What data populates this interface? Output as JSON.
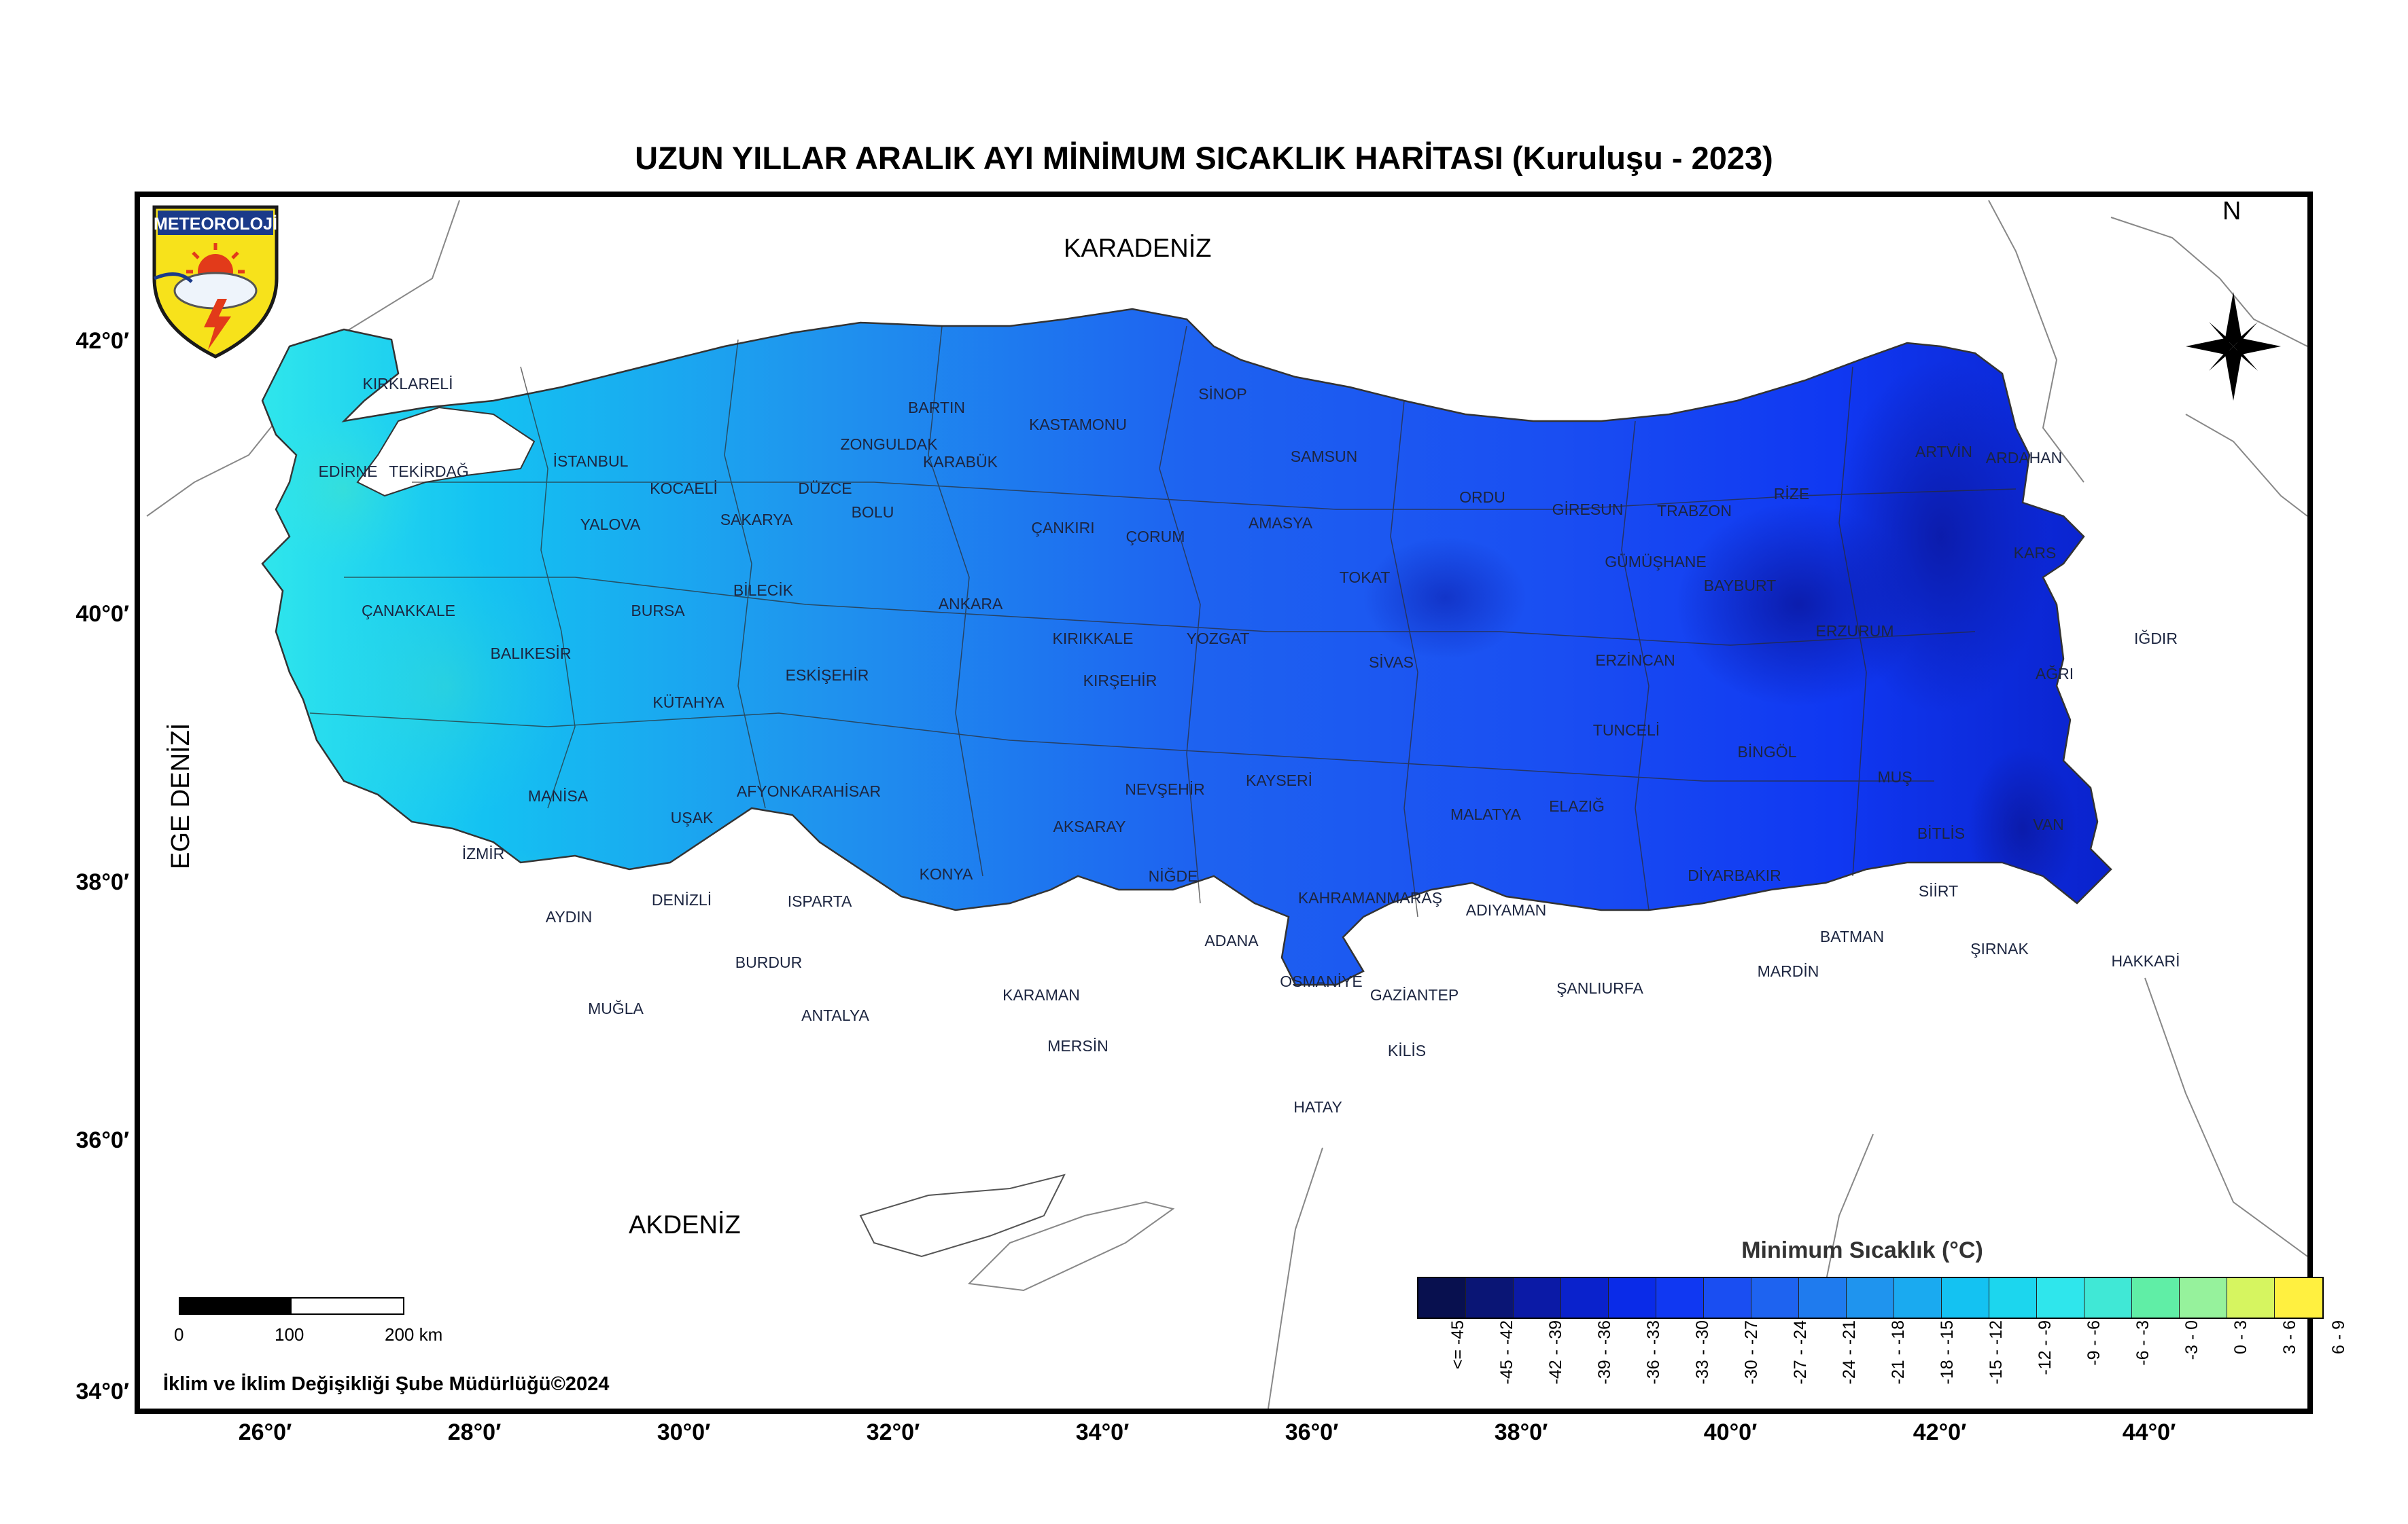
{
  "title": "UZUN YILLAR ARALIK AYI MİNİMUM SICAKLIK HARİTASI (Kuruluşu - 2023)",
  "logo_text": "METEOROLOJİ",
  "north_label": "N",
  "seas": {
    "karadeniz": "KARADENİZ",
    "akdeniz": "AKDENİZ",
    "ege": "EGE DENİZİ"
  },
  "latitudes": [
    "42°0′",
    "40°0′",
    "38°0′",
    "36°0′",
    "34°0′"
  ],
  "longitudes": [
    "26°0′",
    "28°0′",
    "30°0′",
    "32°0′",
    "34°0′",
    "36°0′",
    "38°0′",
    "40°0′",
    "42°0′",
    "44°0′"
  ],
  "provinces": [
    "KIRKLARELİ",
    "EDİRNE",
    "TEKİRDAĞ",
    "İSTANBUL",
    "KOCAELİ",
    "YALOVA",
    "SAKARYA",
    "DÜZCE",
    "BOLU",
    "ZONGULDAK",
    "BARTIN",
    "KARABÜK",
    "KASTAMONU",
    "SİNOP",
    "SAMSUN",
    "ORDU",
    "GİRESUN",
    "TRABZON",
    "RİZE",
    "ARTVİN",
    "ARDAHAN",
    "KARS",
    "IĞDIR",
    "AĞRI",
    "ERZURUM",
    "BAYBURT",
    "GÜMÜŞHANE",
    "ERZİNCAN",
    "TUNCELİ",
    "BİNGÖL",
    "MUŞ",
    "BİTLİS",
    "VAN",
    "HAKKARİ",
    "ŞIRNAK",
    "SİİRT",
    "BATMAN",
    "MARDİN",
    "DİYARBAKIR",
    "ELAZIĞ",
    "MALATYA",
    "ADIYAMAN",
    "ŞANLIURFA",
    "GAZİANTEP",
    "KİLİS",
    "HATAY",
    "OSMANİYE",
    "ADANA",
    "KAHRAMANMARAŞ",
    "KAYSERİ",
    "SİVAS",
    "TOKAT",
    "AMASYA",
    "ÇORUM",
    "YOZGAT",
    "KIRŞEHİR",
    "KIRIKKALE",
    "ÇANKIRI",
    "ANKARA",
    "NEVŞEHİR",
    "AKSARAY",
    "NİĞDE",
    "KONYA",
    "KARAMAN",
    "MERSİN",
    "ANTALYA",
    "BURDUR",
    "ISPARTA",
    "DENİZLİ",
    "MUĞLA",
    "AYDIN",
    "İZMİR",
    "MANİSA",
    "UŞAK",
    "AFYONKARAHİSAR",
    "KÜTAHYA",
    "ESKİŞEHİR",
    "BİLECİK",
    "BURSA",
    "BALIKESİR",
    "ÇANAKKALE"
  ],
  "legend": {
    "title": "Minimum Sıcaklık (°C)",
    "classes": [
      {
        "label": "<= -45",
        "color": "#08104f"
      },
      {
        "label": "-45 - -42",
        "color": "#0a1575"
      },
      {
        "label": "-42 - -39",
        "color": "#0b1aa6"
      },
      {
        "label": "-39 - -36",
        "color": "#0a22cc"
      },
      {
        "label": "-36 - -33",
        "color": "#0a2be8"
      },
      {
        "label": "-33 - -30",
        "color": "#1038f2"
      },
      {
        "label": "-30 - -27",
        "color": "#1a4ef2"
      },
      {
        "label": "-27 - -24",
        "color": "#1e63f0"
      },
      {
        "label": "-24 - -21",
        "color": "#1f7bee"
      },
      {
        "label": "-21 - -18",
        "color": "#1f94ee"
      },
      {
        "label": "-18 - -15",
        "color": "#1aaaf0"
      },
      {
        "label": "-15 - -12",
        "color": "#14c2f2"
      },
      {
        "label": "-12 - -9",
        "color": "#1cd6ee"
      },
      {
        "label": "-9 - -6",
        "color": "#2fe6ec"
      },
      {
        "label": "-6 - -3",
        "color": "#40e8d6"
      },
      {
        "label": "-3 - 0",
        "color": "#60eea6"
      },
      {
        "label": "0 - 3",
        "color": "#96f29c"
      },
      {
        "label": "3 - 6",
        "color": "#d6f560"
      },
      {
        "label": "6 - 9",
        "color": "#fff040"
      }
    ]
  },
  "scale": {
    "labels": [
      "0",
      "100",
      "200 km"
    ]
  },
  "credit": "İklim ve İklim Değişikliği Şube Müdürlüğü©2024"
}
